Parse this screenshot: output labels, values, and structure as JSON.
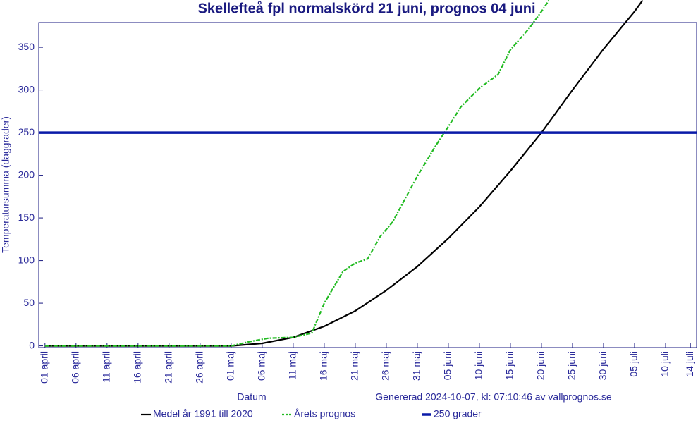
{
  "chart_data": {
    "type": "line",
    "title": "Skellefteå fpl normalskörd 21 juni, prognos 04 juni",
    "x_label": "Datum",
    "y_label": "Temperatursumma (daggrader)",
    "annotation": "Genererad 2024-10-07, kl: 07:10:46 av vallprognos.se",
    "xlim": [
      -1,
      105
    ],
    "ylim": [
      -2,
      379
    ],
    "xticks": [
      {
        "value": 0,
        "label": "01 april"
      },
      {
        "value": 5,
        "label": "06 april"
      },
      {
        "value": 10,
        "label": "11 april"
      },
      {
        "value": 15,
        "label": "16 april"
      },
      {
        "value": 20,
        "label": "21 april"
      },
      {
        "value": 25,
        "label": "26 april"
      },
      {
        "value": 30,
        "label": "01 maj"
      },
      {
        "value": 35,
        "label": "06 maj"
      },
      {
        "value": 40,
        "label": "11 maj"
      },
      {
        "value": 45,
        "label": "16 maj"
      },
      {
        "value": 50,
        "label": "21 maj"
      },
      {
        "value": 55,
        "label": "26 maj"
      },
      {
        "value": 60,
        "label": "31 maj"
      },
      {
        "value": 65,
        "label": "05 juni"
      },
      {
        "value": 70,
        "label": "10 juni"
      },
      {
        "value": 75,
        "label": "15 juni"
      },
      {
        "value": 80,
        "label": "20 juni"
      },
      {
        "value": 85,
        "label": "25 juni"
      },
      {
        "value": 90,
        "label": "30 juni"
      },
      {
        "value": 95,
        "label": "05 juli"
      },
      {
        "value": 100,
        "label": "10 juli"
      },
      {
        "value": 104,
        "label": "14 juli"
      }
    ],
    "yticks": [
      0,
      50,
      100,
      150,
      200,
      250,
      300,
      350
    ],
    "grid": false,
    "legend": "bottom",
    "series": [
      {
        "name": "Medel år 1991 till 2020",
        "color": "#000000",
        "dash": "none",
        "width": 2.2,
        "x": [
          0,
          30,
          35,
          40,
          45,
          50,
          55,
          60,
          65,
          70,
          75,
          80,
          85,
          90,
          95,
          96.3
        ],
        "values": [
          0,
          0,
          3,
          10,
          23,
          41,
          65,
          93,
          126,
          163,
          205,
          250,
          300,
          348,
          392,
          405
        ]
      },
      {
        "name": "Årets prognos",
        "color": "#22bb22",
        "dash": "6 2 2 2",
        "width": 2.2,
        "x": [
          0,
          30,
          33,
          36,
          40,
          43,
          45,
          48,
          50,
          52,
          54,
          56,
          60,
          63,
          65,
          67,
          70,
          73,
          75,
          78,
          80,
          81.2
        ],
        "values": [
          0,
          0,
          5,
          9,
          10,
          15,
          50,
          87,
          97,
          102,
          128,
          145,
          199,
          235,
          257,
          280,
          302,
          318,
          347,
          372,
          392,
          405
        ]
      },
      {
        "name": "250 grader",
        "color": "#0a1aa8",
        "dash": "none",
        "width": 3.5,
        "x": [
          -1,
          105
        ],
        "values": [
          250,
          250
        ]
      }
    ]
  }
}
